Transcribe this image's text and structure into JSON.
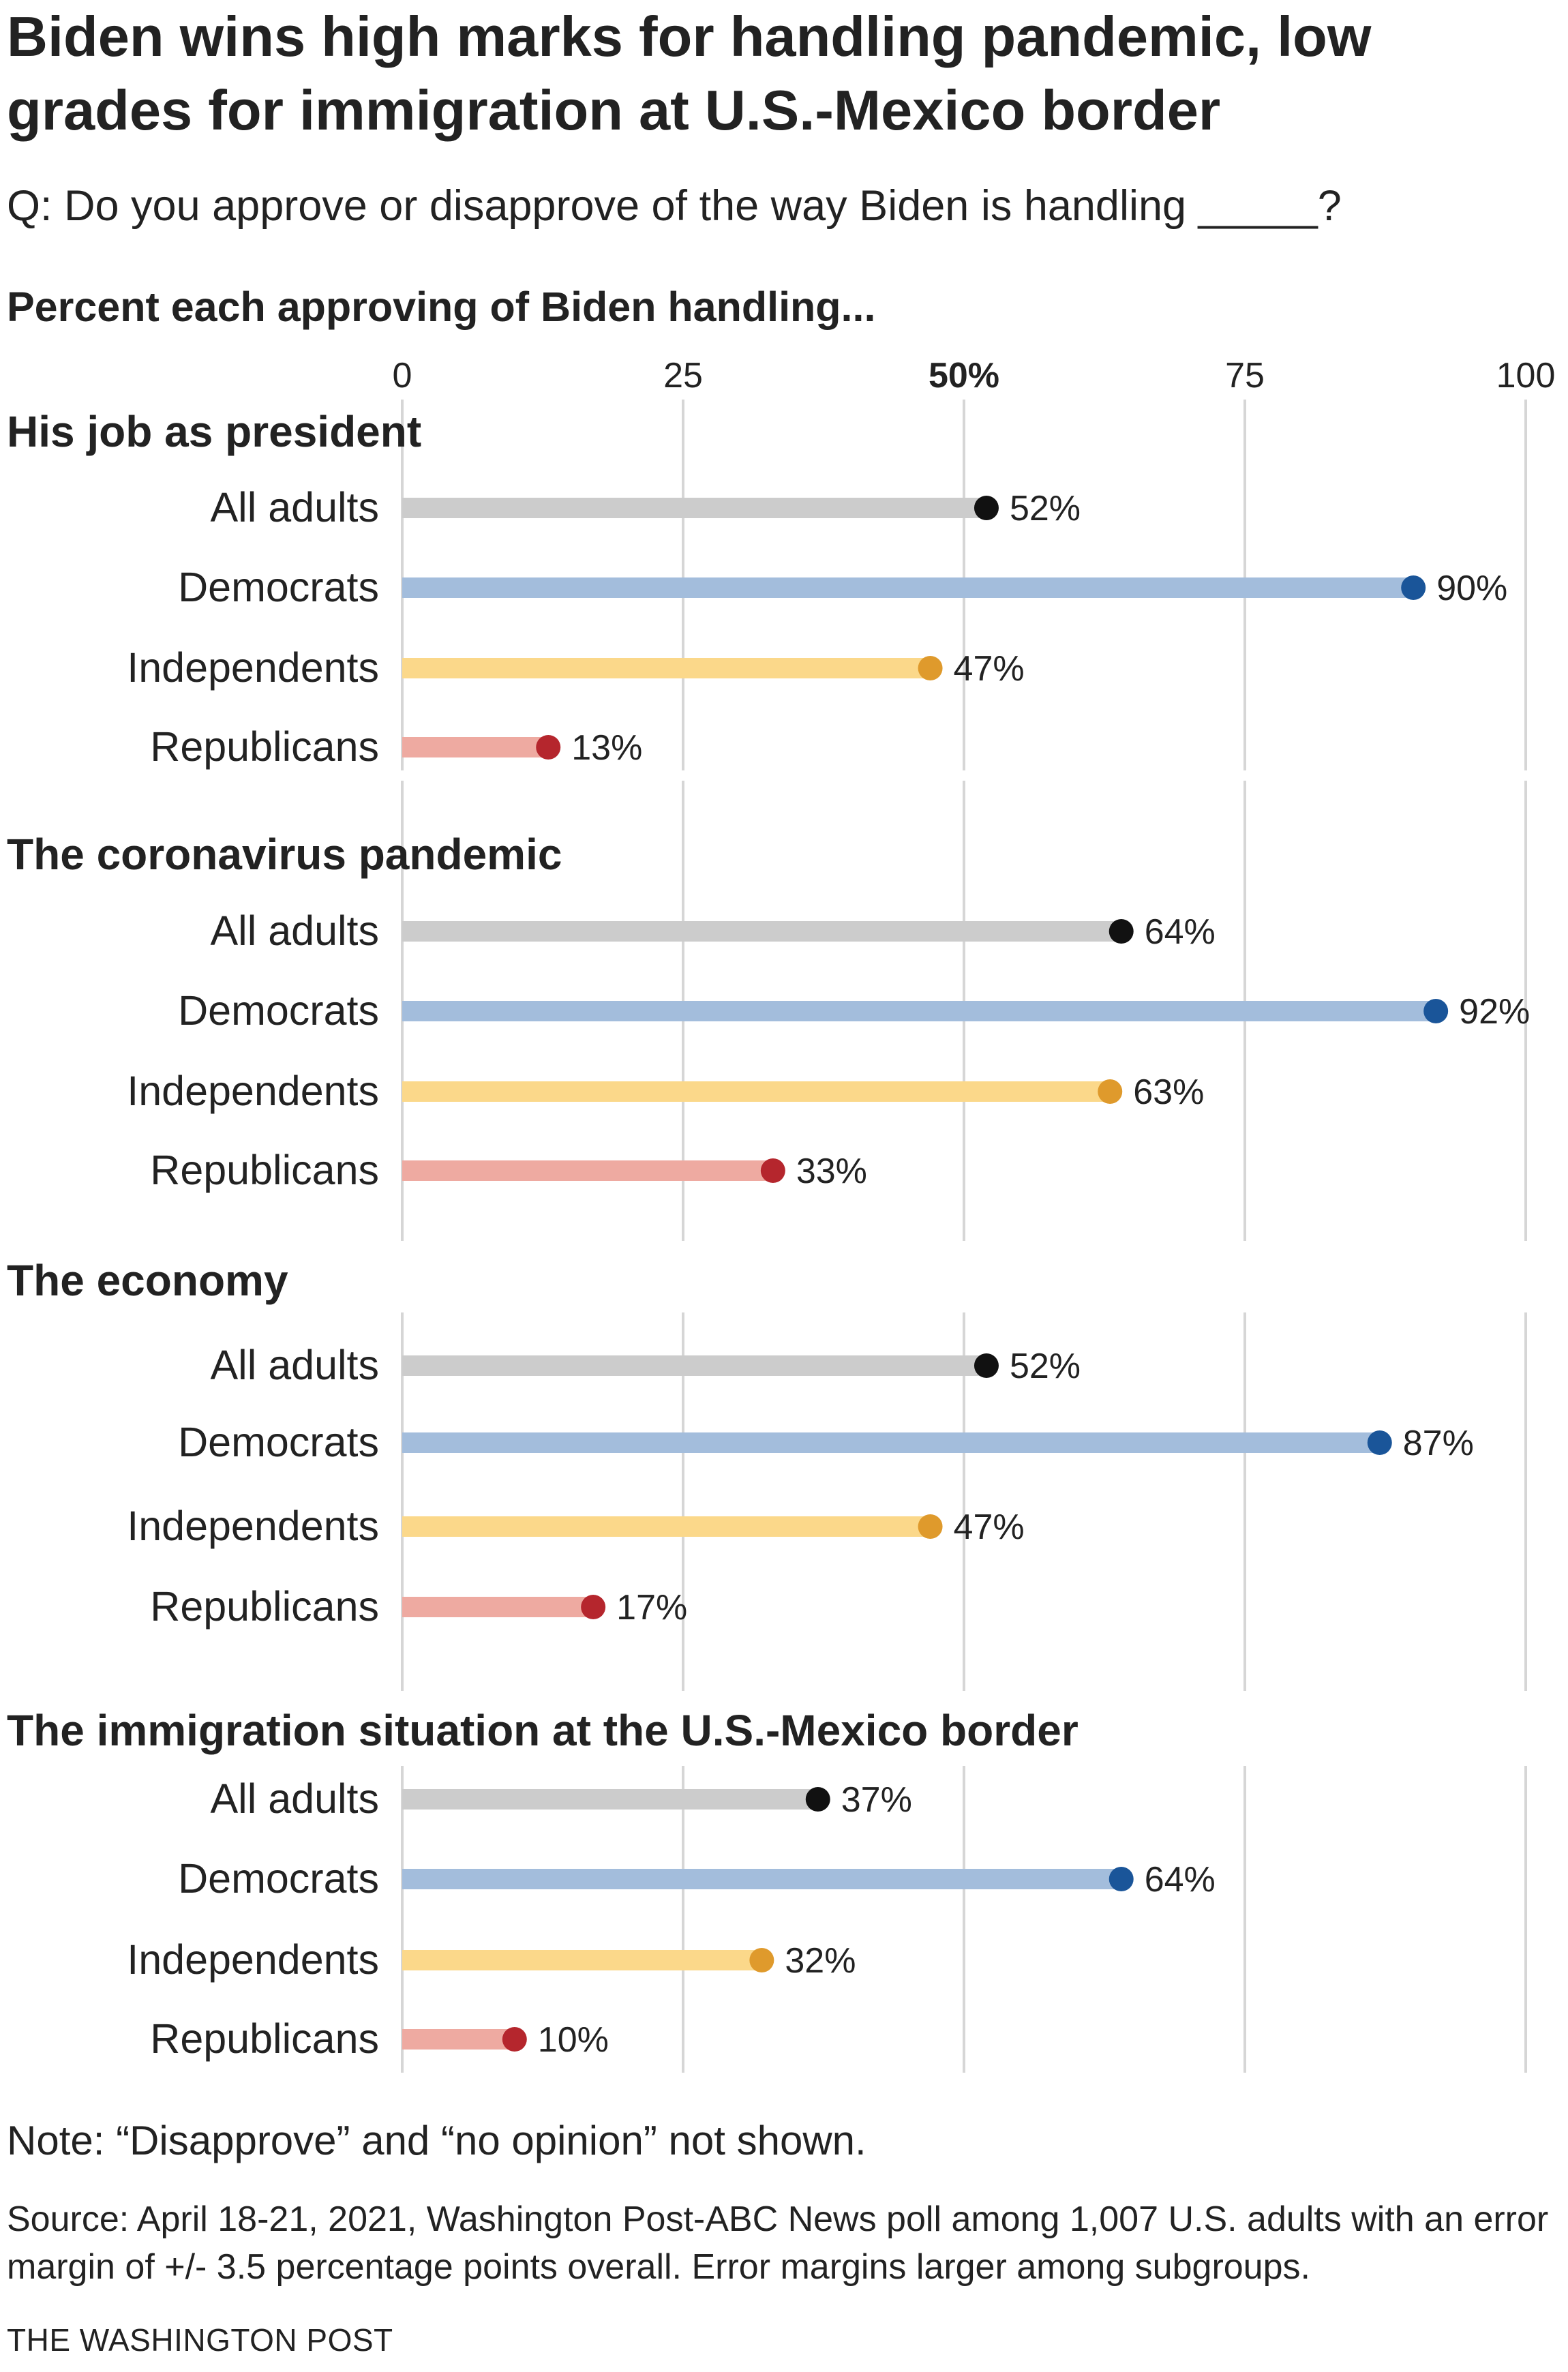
{
  "header": {
    "title": "Biden wins high marks for handling pandemic, low grades for immigration at U.S.-Mexico border",
    "question": "Q: Do you approve or disapprove of the way Biden is handling _____?",
    "kicker": "Percent each approving of Biden handling..."
  },
  "chart_data": {
    "type": "bar",
    "xlim": [
      0,
      100
    ],
    "ticks": [
      "0",
      "25",
      "50%",
      "75",
      "100"
    ],
    "tick_values": [
      0,
      25,
      50,
      75,
      100
    ],
    "grid": true,
    "categories": [
      "All adults",
      "Democrats",
      "Independents",
      "Republicans"
    ],
    "colors": {
      "All adults": {
        "bar": "#cccccc",
        "dot": "#111111"
      },
      "Democrats": {
        "bar": "#a3bddc",
        "dot": "#1a5599"
      },
      "Independents": {
        "bar": "#fbd88a",
        "dot": "#df9a2c"
      },
      "Republicans": {
        "bar": "#eeaaa1",
        "dot": "#b5262d"
      }
    },
    "panels": [
      {
        "title": "His job as president",
        "values": [
          52,
          90,
          47,
          13
        ],
        "labels": [
          "52%",
          "90%",
          "47%",
          "13%"
        ]
      },
      {
        "title": "The coronavirus pandemic",
        "values": [
          64,
          92,
          63,
          33
        ],
        "labels": [
          "64%",
          "92%",
          "63%",
          "33%"
        ]
      },
      {
        "title": "The economy",
        "values": [
          52,
          87,
          47,
          17
        ],
        "labels": [
          "52%",
          "87%",
          "47%",
          "17%"
        ]
      },
      {
        "title": "The immigration situation at the U.S.-Mexico border",
        "values": [
          37,
          64,
          32,
          10
        ],
        "labels": [
          "37%",
          "64%",
          "32%",
          "10%"
        ]
      }
    ]
  },
  "footer": {
    "note": "Note: “Disapprove” and “no opinion” not shown.",
    "source": "Source: April 18-21, 2021, Washington Post-ABC News poll among 1,007 U.S. adults with an error margin of +/- 3.5 percentage points overall. Error margins larger among subgroups.",
    "credit": "THE WASHINGTON POST"
  }
}
